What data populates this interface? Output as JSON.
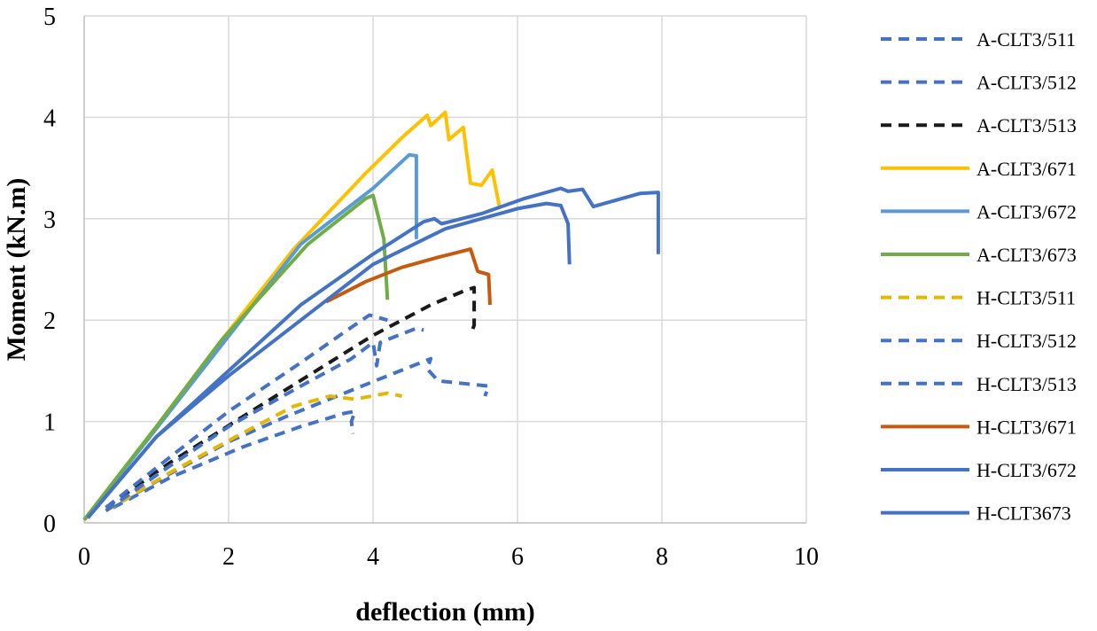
{
  "chart_data": {
    "type": "line",
    "title": "",
    "xlabel": "deflection (mm)",
    "ylabel": "Moment (kN.m)",
    "xlim": [
      0,
      10
    ],
    "ylim": [
      0,
      5
    ],
    "xticks": [
      0,
      2,
      4,
      6,
      8,
      10
    ],
    "yticks": [
      0,
      1,
      2,
      3,
      4,
      5
    ],
    "grid": true,
    "legend_position": "right",
    "series": [
      {
        "name": "A-CLT3/511",
        "color": "#4472C4",
        "dash": true,
        "points": [
          [
            0.4,
            0.15
          ],
          [
            1.2,
            0.45
          ],
          [
            2.2,
            0.75
          ],
          [
            3.0,
            0.95
          ],
          [
            3.6,
            1.08
          ],
          [
            3.75,
            1.1
          ],
          [
            3.7,
            1.0
          ],
          [
            3.72,
            0.88
          ]
        ]
      },
      {
        "name": "A-CLT3/512",
        "color": "#4472C4",
        "dash": true,
        "points": [
          [
            0.3,
            0.12
          ],
          [
            1.1,
            0.45
          ],
          [
            2.0,
            0.8
          ],
          [
            2.8,
            1.05
          ],
          [
            3.5,
            1.25
          ],
          [
            4.2,
            1.45
          ],
          [
            4.8,
            1.62
          ],
          [
            4.75,
            1.52
          ],
          [
            4.9,
            1.4
          ],
          [
            5.6,
            1.35
          ],
          [
            5.55,
            1.25
          ]
        ]
      },
      {
        "name": "A-CLT3/513",
        "color": "#1a1a1a",
        "dash": true,
        "points": [
          [
            0.3,
            0.15
          ],
          [
            1.2,
            0.6
          ],
          [
            2.2,
            1.05
          ],
          [
            3.1,
            1.45
          ],
          [
            4.0,
            1.85
          ],
          [
            4.8,
            2.15
          ],
          [
            5.3,
            2.3
          ],
          [
            5.4,
            2.32
          ],
          [
            5.4,
            1.95
          ],
          [
            5.35,
            1.85
          ]
        ]
      },
      {
        "name": "A-CLT3/671",
        "color": "#FFC000",
        "dash": false,
        "points": [
          [
            0.0,
            0.03
          ],
          [
            1.0,
            0.95
          ],
          [
            1.9,
            1.8
          ],
          [
            2.9,
            2.7
          ],
          [
            3.9,
            3.45
          ],
          [
            4.4,
            3.8
          ],
          [
            4.75,
            4.02
          ],
          [
            4.8,
            3.92
          ],
          [
            5.0,
            4.05
          ],
          [
            5.05,
            3.78
          ],
          [
            5.25,
            3.9
          ],
          [
            5.35,
            3.35
          ],
          [
            5.5,
            3.33
          ],
          [
            5.65,
            3.48
          ],
          [
            5.75,
            3.12
          ]
        ]
      },
      {
        "name": "A-CLT3/672",
        "color": "#5B9BD5",
        "dash": false,
        "points": [
          [
            0.0,
            0.03
          ],
          [
            1.0,
            0.93
          ],
          [
            1.9,
            1.75
          ],
          [
            3.0,
            2.75
          ],
          [
            4.0,
            3.3
          ],
          [
            4.5,
            3.63
          ],
          [
            4.6,
            3.62
          ],
          [
            4.6,
            2.8
          ]
        ]
      },
      {
        "name": "A-CLT3/673",
        "color": "#70AD47",
        "dash": false,
        "points": [
          [
            0.0,
            0.03
          ],
          [
            1.0,
            0.95
          ],
          [
            1.9,
            1.8
          ],
          [
            3.1,
            2.75
          ],
          [
            3.9,
            3.2
          ],
          [
            4.0,
            3.23
          ],
          [
            4.15,
            2.8
          ],
          [
            4.2,
            2.2
          ]
        ]
      },
      {
        "name": "H-CLT3/511",
        "color": "#E5B700",
        "dash": true,
        "points": [
          [
            0.3,
            0.12
          ],
          [
            1.2,
            0.5
          ],
          [
            2.1,
            0.85
          ],
          [
            2.9,
            1.15
          ],
          [
            3.4,
            1.25
          ],
          [
            3.75,
            1.22
          ],
          [
            4.2,
            1.28
          ],
          [
            4.4,
            1.25
          ]
        ]
      },
      {
        "name": "H-CLT3/512",
        "color": "#4472C4",
        "dash": true,
        "points": [
          [
            0.3,
            0.12
          ],
          [
            1.1,
            0.52
          ],
          [
            2.0,
            0.95
          ],
          [
            3.0,
            1.35
          ],
          [
            3.7,
            1.62
          ],
          [
            4.0,
            1.78
          ],
          [
            4.05,
            1.55
          ],
          [
            4.1,
            1.78
          ],
          [
            4.6,
            1.92
          ],
          [
            4.7,
            1.9
          ]
        ]
      },
      {
        "name": "H-CLT3/513",
        "color": "#4472C4",
        "dash": true,
        "points": [
          [
            0.3,
            0.15
          ],
          [
            1.1,
            0.6
          ],
          [
            2.0,
            1.1
          ],
          [
            3.0,
            1.58
          ],
          [
            3.6,
            1.88
          ],
          [
            3.95,
            2.05
          ],
          [
            4.2,
            2.0
          ]
        ]
      },
      {
        "name": "H-CLT3/671",
        "color": "#C55A11",
        "dash": false,
        "points": [
          [
            3.35,
            2.18
          ],
          [
            3.9,
            2.38
          ],
          [
            4.4,
            2.52
          ],
          [
            4.9,
            2.62
          ],
          [
            5.35,
            2.7
          ],
          [
            5.45,
            2.48
          ],
          [
            5.6,
            2.45
          ],
          [
            5.62,
            2.15
          ]
        ]
      },
      {
        "name": "H-CLT3/672",
        "color": "#4472C4",
        "dash": false,
        "points": [
          [
            0.05,
            0.05
          ],
          [
            1.0,
            0.85
          ],
          [
            2.0,
            1.45
          ],
          [
            3.0,
            2.0
          ],
          [
            4.0,
            2.55
          ],
          [
            5.0,
            2.9
          ],
          [
            6.0,
            3.1
          ],
          [
            6.4,
            3.15
          ],
          [
            6.6,
            3.13
          ],
          [
            6.7,
            2.95
          ],
          [
            6.72,
            2.55
          ]
        ]
      },
      {
        "name": "H-CLT3673",
        "color": "#4472C4",
        "dash": false,
        "points": [
          [
            0.05,
            0.05
          ],
          [
            1.0,
            0.85
          ],
          [
            2.0,
            1.5
          ],
          [
            3.0,
            2.15
          ],
          [
            4.0,
            2.65
          ],
          [
            4.7,
            2.97
          ],
          [
            4.85,
            3.0
          ],
          [
            4.95,
            2.95
          ],
          [
            5.5,
            3.05
          ],
          [
            6.1,
            3.2
          ],
          [
            6.6,
            3.3
          ],
          [
            6.7,
            3.27
          ],
          [
            6.9,
            3.29
          ],
          [
            7.05,
            3.12
          ],
          [
            7.7,
            3.25
          ],
          [
            7.95,
            3.26
          ],
          [
            7.95,
            2.65
          ]
        ]
      }
    ]
  }
}
